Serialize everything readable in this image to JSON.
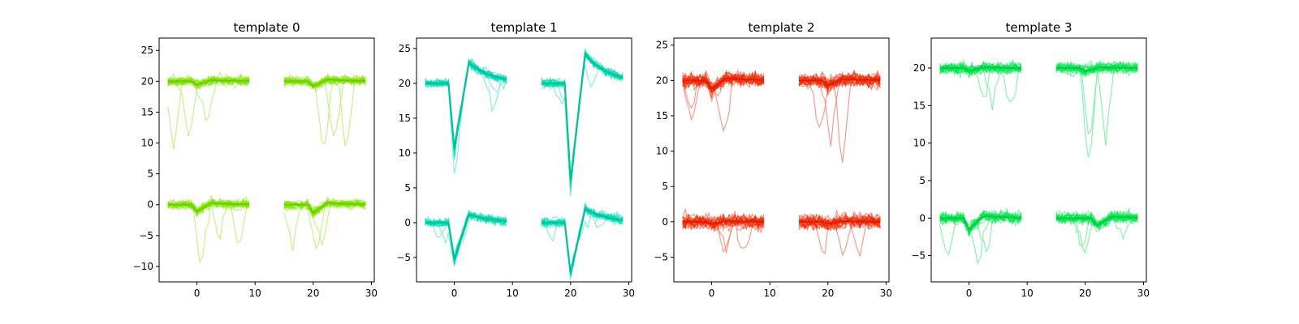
{
  "chart_data": [
    {
      "type": "line",
      "title": "template 0",
      "color": "#7fe600",
      "xlim": [
        -6.5,
        30.5
      ],
      "ylim": [
        -12.5,
        27
      ],
      "xticks": [
        0,
        10,
        20,
        30
      ],
      "yticks": [
        -10,
        -5,
        0,
        5,
        10,
        15,
        20,
        25
      ],
      "xtick_labels": [
        "0",
        "10",
        "20",
        "30"
      ],
      "ytick_labels": [
        "−10",
        "−5",
        "0",
        "5",
        "10",
        "15",
        "20",
        "25"
      ],
      "channels": [
        {
          "x_start": -5,
          "x_end": 9,
          "baseline": 20,
          "mean_peak": -0.6,
          "peak_x": 0,
          "rebound": 0.2,
          "noise": 0.6,
          "outlier_depth": -12
        },
        {
          "x_start": 15,
          "x_end": 29,
          "baseline": 20,
          "mean_peak": -0.8,
          "peak_x": 20,
          "rebound": 0.3,
          "noise": 0.6,
          "outlier_depth": -15
        },
        {
          "x_start": -5,
          "x_end": 9,
          "baseline": 0,
          "mean_peak": -1.1,
          "peak_x": 0,
          "rebound": 0.3,
          "noise": 0.6,
          "outlier_depth": -10
        },
        {
          "x_start": 15,
          "x_end": 29,
          "baseline": 0,
          "mean_peak": -1.3,
          "peak_x": 20,
          "rebound": 0.3,
          "noise": 0.6,
          "outlier_depth": -10
        }
      ]
    },
    {
      "type": "line",
      "title": "template 1",
      "color": "#00dbb0",
      "xlim": [
        -6.5,
        30.5
      ],
      "ylim": [
        -8.5,
        26.5
      ],
      "xticks": [
        0,
        10,
        20,
        30
      ],
      "yticks": [
        -5,
        0,
        5,
        10,
        15,
        20,
        25
      ],
      "xtick_labels": [
        "0",
        "10",
        "20",
        "30"
      ],
      "ytick_labels": [
        "−5",
        "0",
        "5",
        "10",
        "15",
        "20",
        "25"
      ],
      "channels": [
        {
          "x_start": -5,
          "x_end": 9,
          "baseline": 20,
          "mean_peak": -9.5,
          "peak_x": 0,
          "rebound": 3,
          "noise": 0.5,
          "outlier_depth": -5
        },
        {
          "x_start": 15,
          "x_end": 29,
          "baseline": 20,
          "mean_peak": -14,
          "peak_x": 20,
          "rebound": 4.2,
          "noise": 0.5,
          "outlier_depth": -5
        },
        {
          "x_start": -5,
          "x_end": 9,
          "baseline": 0,
          "mean_peak": -5.3,
          "peak_x": 0,
          "rebound": 1.2,
          "noise": 0.5,
          "outlier_depth": -3
        },
        {
          "x_start": 15,
          "x_end": 29,
          "baseline": 0,
          "mean_peak": -7.3,
          "peak_x": 20,
          "rebound": 2,
          "noise": 0.5,
          "outlier_depth": -3
        }
      ]
    },
    {
      "type": "line",
      "title": "template 2",
      "color": "#f52500",
      "xlim": [
        -6.5,
        30.5
      ],
      "ylim": [
        -8.5,
        26
      ],
      "xticks": [
        0,
        10,
        20,
        30
      ],
      "yticks": [
        -5,
        0,
        5,
        10,
        15,
        20,
        25
      ],
      "xtick_labels": [
        "0",
        "10",
        "20",
        "30"
      ],
      "ytick_labels": [
        "−5",
        "0",
        "5",
        "10",
        "15",
        "20",
        "25"
      ],
      "channels": [
        {
          "x_start": -5,
          "x_end": 9,
          "baseline": 20,
          "mean_peak": -1.2,
          "peak_x": 0,
          "rebound": 0.3,
          "noise": 0.8,
          "outlier_depth": -9
        },
        {
          "x_start": 15,
          "x_end": 29,
          "baseline": 20,
          "mean_peak": -0.7,
          "peak_x": 20,
          "rebound": 0.2,
          "noise": 0.8,
          "outlier_depth": -13
        },
        {
          "x_start": -5,
          "x_end": 9,
          "baseline": 0,
          "mean_peak": -0.3,
          "peak_x": 0,
          "rebound": 0.1,
          "noise": 0.8,
          "outlier_depth": -6
        },
        {
          "x_start": 15,
          "x_end": 29,
          "baseline": 0,
          "mean_peak": -0.3,
          "peak_x": 20,
          "rebound": 0.1,
          "noise": 0.8,
          "outlier_depth": -6
        }
      ]
    },
    {
      "type": "line",
      "title": "template 3",
      "color": "#00e64d",
      "xlim": [
        -6.5,
        30.5
      ],
      "ylim": [
        -8.5,
        24
      ],
      "xticks": [
        0,
        10,
        20,
        30
      ],
      "yticks": [
        -5,
        0,
        5,
        10,
        15,
        20
      ],
      "xtick_labels": [
        "0",
        "10",
        "20",
        "30"
      ],
      "ytick_labels": [
        "−5",
        "0",
        "5",
        "10",
        "15",
        "20"
      ],
      "channels": [
        {
          "x_start": -5,
          "x_end": 9,
          "baseline": 20,
          "mean_peak": -0.4,
          "peak_x": 0,
          "rebound": 0.1,
          "noise": 0.6,
          "outlier_depth": -8
        },
        {
          "x_start": 15,
          "x_end": 29,
          "baseline": 20,
          "mean_peak": -0.4,
          "peak_x": 20,
          "rebound": 0.1,
          "noise": 0.6,
          "outlier_depth": -14
        },
        {
          "x_start": -5,
          "x_end": 9,
          "baseline": 0,
          "mean_peak": -1.5,
          "peak_x": 0,
          "rebound": 0.3,
          "noise": 0.6,
          "outlier_depth": -6
        },
        {
          "x_start": 15,
          "x_end": 29,
          "baseline": 0,
          "mean_peak": -1.0,
          "peak_x": 22,
          "rebound": 0.2,
          "noise": 0.6,
          "outlier_depth": -6
        }
      ]
    }
  ]
}
